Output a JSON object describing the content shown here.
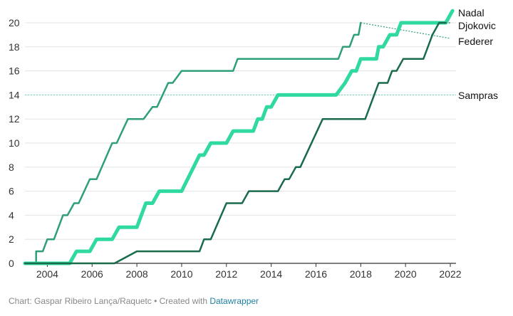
{
  "chart_data": {
    "type": "line",
    "title": "",
    "xlabel": "",
    "ylabel": "",
    "xlim": [
      2003,
      2022
    ],
    "ylim": [
      0,
      20
    ],
    "x_ticks": [
      "2004",
      "2006",
      "2008",
      "2010",
      "2012",
      "2014",
      "2016",
      "2018",
      "2020",
      "2022"
    ],
    "y_ticks": [
      "0",
      "2",
      "4",
      "6",
      "8",
      "10",
      "12",
      "14",
      "16",
      "18",
      "20"
    ],
    "grid": true,
    "series": [
      {
        "name": "Federer",
        "color": "#2e9e7b",
        "points": [
          [
            2003.0,
            0
          ],
          [
            2003.5,
            0
          ],
          [
            2003.5,
            1
          ],
          [
            2003.8,
            1
          ],
          [
            2004.0,
            2
          ],
          [
            2004.3,
            2
          ],
          [
            2004.7,
            4
          ],
          [
            2004.9,
            4
          ],
          [
            2005.2,
            5
          ],
          [
            2005.4,
            5
          ],
          [
            2005.9,
            7
          ],
          [
            2006.2,
            7
          ],
          [
            2006.9,
            10
          ],
          [
            2007.1,
            10
          ],
          [
            2007.6,
            12
          ],
          [
            2008.3,
            12
          ],
          [
            2008.7,
            13
          ],
          [
            2008.9,
            13
          ],
          [
            2009.4,
            15
          ],
          [
            2009.6,
            15
          ],
          [
            2010.0,
            16
          ],
          [
            2012.3,
            16
          ],
          [
            2012.5,
            17
          ],
          [
            2017.0,
            17
          ],
          [
            2017.2,
            18
          ],
          [
            2017.5,
            18
          ],
          [
            2017.7,
            19
          ],
          [
            2017.9,
            19
          ],
          [
            2018.0,
            20
          ]
        ]
      },
      {
        "name": "Nadal",
        "color": "#2fd9a0",
        "points": [
          [
            2003.0,
            0
          ],
          [
            2005.0,
            0
          ],
          [
            2005.3,
            1
          ],
          [
            2005.9,
            1
          ],
          [
            2006.2,
            2
          ],
          [
            2006.9,
            2
          ],
          [
            2007.2,
            3
          ],
          [
            2008.0,
            3
          ],
          [
            2008.4,
            5
          ],
          [
            2008.7,
            5
          ],
          [
            2009.0,
            6
          ],
          [
            2010.0,
            6
          ],
          [
            2010.8,
            9
          ],
          [
            2011.0,
            9
          ],
          [
            2011.3,
            10
          ],
          [
            2012.0,
            10
          ],
          [
            2012.3,
            11
          ],
          [
            2013.2,
            11
          ],
          [
            2013.4,
            12
          ],
          [
            2013.6,
            12
          ],
          [
            2013.8,
            13
          ],
          [
            2014.0,
            13
          ],
          [
            2014.3,
            14
          ],
          [
            2016.9,
            14
          ],
          [
            2017.3,
            15
          ],
          [
            2017.6,
            16
          ],
          [
            2017.8,
            16
          ],
          [
            2018.0,
            17
          ],
          [
            2018.7,
            17
          ],
          [
            2018.8,
            18
          ],
          [
            2019.0,
            18
          ],
          [
            2019.3,
            19
          ],
          [
            2019.6,
            19
          ],
          [
            2019.8,
            20
          ],
          [
            2021.8,
            20
          ],
          [
            2022.1,
            21
          ]
        ]
      },
      {
        "name": "Djokovic",
        "color": "#1a6b4b",
        "points": [
          [
            2003.0,
            0
          ],
          [
            2007.0,
            0
          ],
          [
            2008.0,
            1
          ],
          [
            2010.8,
            1
          ],
          [
            2011.0,
            2
          ],
          [
            2011.3,
            2
          ],
          [
            2012.0,
            5
          ],
          [
            2012.7,
            5
          ],
          [
            2013.0,
            6
          ],
          [
            2014.3,
            6
          ],
          [
            2014.6,
            7
          ],
          [
            2014.8,
            7
          ],
          [
            2015.1,
            8
          ],
          [
            2015.3,
            8
          ],
          [
            2016.3,
            12
          ],
          [
            2018.2,
            12
          ],
          [
            2018.8,
            15
          ],
          [
            2019.2,
            15
          ],
          [
            2019.4,
            16
          ],
          [
            2019.6,
            16
          ],
          [
            2019.9,
            17
          ],
          [
            2020.8,
            17
          ],
          [
            2021.2,
            19
          ],
          [
            2021.5,
            20
          ],
          [
            2021.8,
            20
          ]
        ]
      }
    ],
    "reference_lines": [
      {
        "name": "Sampras",
        "y": 14,
        "color": "#5fd3c0",
        "style": "dotted"
      }
    ],
    "projections": [
      {
        "series": "Federer",
        "from": [
          2018.0,
          20
        ],
        "to": [
          2022.0,
          18.7
        ],
        "style": "dotted"
      },
      {
        "series": "Djokovic",
        "from": [
          2021.8,
          20
        ],
        "to": [
          2022.0,
          20
        ],
        "style": "dotted"
      }
    ],
    "end_labels": [
      {
        "text": "Nadal",
        "series": "Nadal"
      },
      {
        "text": "Djokovic",
        "series": "Djokovic"
      },
      {
        "text": "Federer",
        "series": "Federer"
      },
      {
        "text": "Sampras",
        "series": "Sampras"
      }
    ]
  },
  "footer": {
    "prefix": "Chart: Gaspar Ribeiro Lança/Raquetc • Created with ",
    "link": "Datawrapper"
  }
}
